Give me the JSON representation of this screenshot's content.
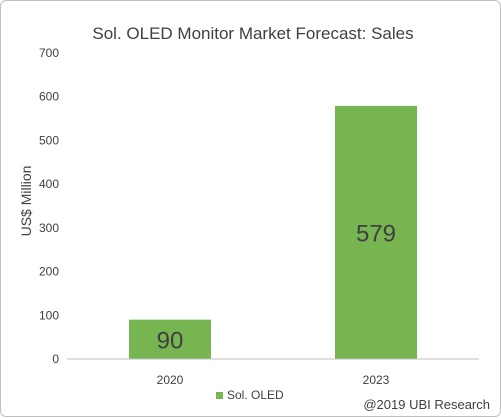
{
  "chart_data": {
    "type": "bar",
    "title": "Sol. OLED Monitor Market Forecast: Sales",
    "ylabel": "US$ Million",
    "xlabel": "",
    "categories": [
      "2020",
      "2023"
    ],
    "series": [
      {
        "name": "Sol. OLED",
        "values": [
          90,
          579
        ],
        "color": "#77b551"
      }
    ],
    "data_labels": [
      "90",
      "579"
    ],
    "yticks": [
      "0",
      "100",
      "200",
      "300",
      "400",
      "500",
      "600",
      "700"
    ],
    "ylim": [
      0,
      700
    ],
    "grid": false,
    "legend": "bottom",
    "annotation": "@2019 UBI Research"
  }
}
